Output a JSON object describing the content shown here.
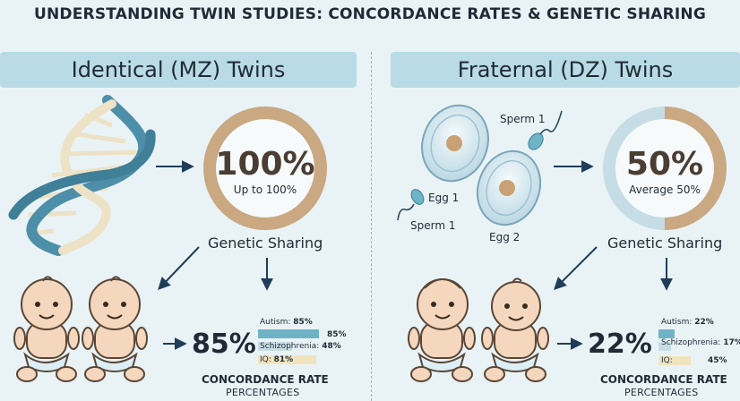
{
  "title": "UNDERSTANDING TWIN STUDIES: CONCORDANCE RATES & GENETIC SHARING",
  "left": {
    "heading": "Identical (MZ) Twins",
    "ring_value": "100%",
    "ring_sub": "Up to 100%",
    "ring_fraction": 1.0,
    "sharing_label": "Genetic Sharing",
    "concordance": "85%",
    "bars": [
      {
        "label": "Autism:",
        "label_value": "85%",
        "bar_value": "85%",
        "fraction": 0.85,
        "color": "#6fb3c6"
      },
      {
        "label": "Schizophrenia:",
        "label_value": "48%",
        "bar_value": "",
        "fraction": 0.48,
        "color": "#c8dde3"
      },
      {
        "label": "IQ:",
        "label_value": "81%",
        "bar_value": "",
        "fraction": 0.81,
        "color": "#f0e4bf"
      }
    ],
    "cr_title": "CONCORDANCE RATE",
    "cr_sub": "PERCENTAGES"
  },
  "right": {
    "heading": "Fraternal (DZ) Twins",
    "ring_value": "50%",
    "ring_sub": "Average 50%",
    "ring_fraction": 0.5,
    "sharing_label": "Genetic Sharing",
    "concordance": "22%",
    "labels": {
      "sperm_top": "Sperm 1",
      "sperm_bottom": "Sperm 1",
      "egg1": "Egg 1",
      "egg2": "Egg 2"
    },
    "bars": [
      {
        "label": "Autism:",
        "label_value": "22%",
        "bar_value": "",
        "fraction": 0.22,
        "color": "#6fb3c6"
      },
      {
        "label": "Schizophrenia:",
        "label_value": "17%",
        "bar_value": "",
        "fraction": 0.17,
        "color": "#c8dde3"
      },
      {
        "label": "IQ:",
        "label_value": "",
        "bar_value": "45%",
        "fraction": 0.45,
        "color": "#f0e4bf"
      }
    ],
    "cr_title": "CONCORDANCE RATE",
    "cr_sub": "PERCENTAGES"
  },
  "colors": {
    "ring_fill": "#c9a882",
    "ring_empty": "#c6dde6",
    "dna_blue": "#4d8fa8",
    "dna_cream": "#ede2c6",
    "skin": "#f4d7bd",
    "diaper": "#dceff6"
  }
}
